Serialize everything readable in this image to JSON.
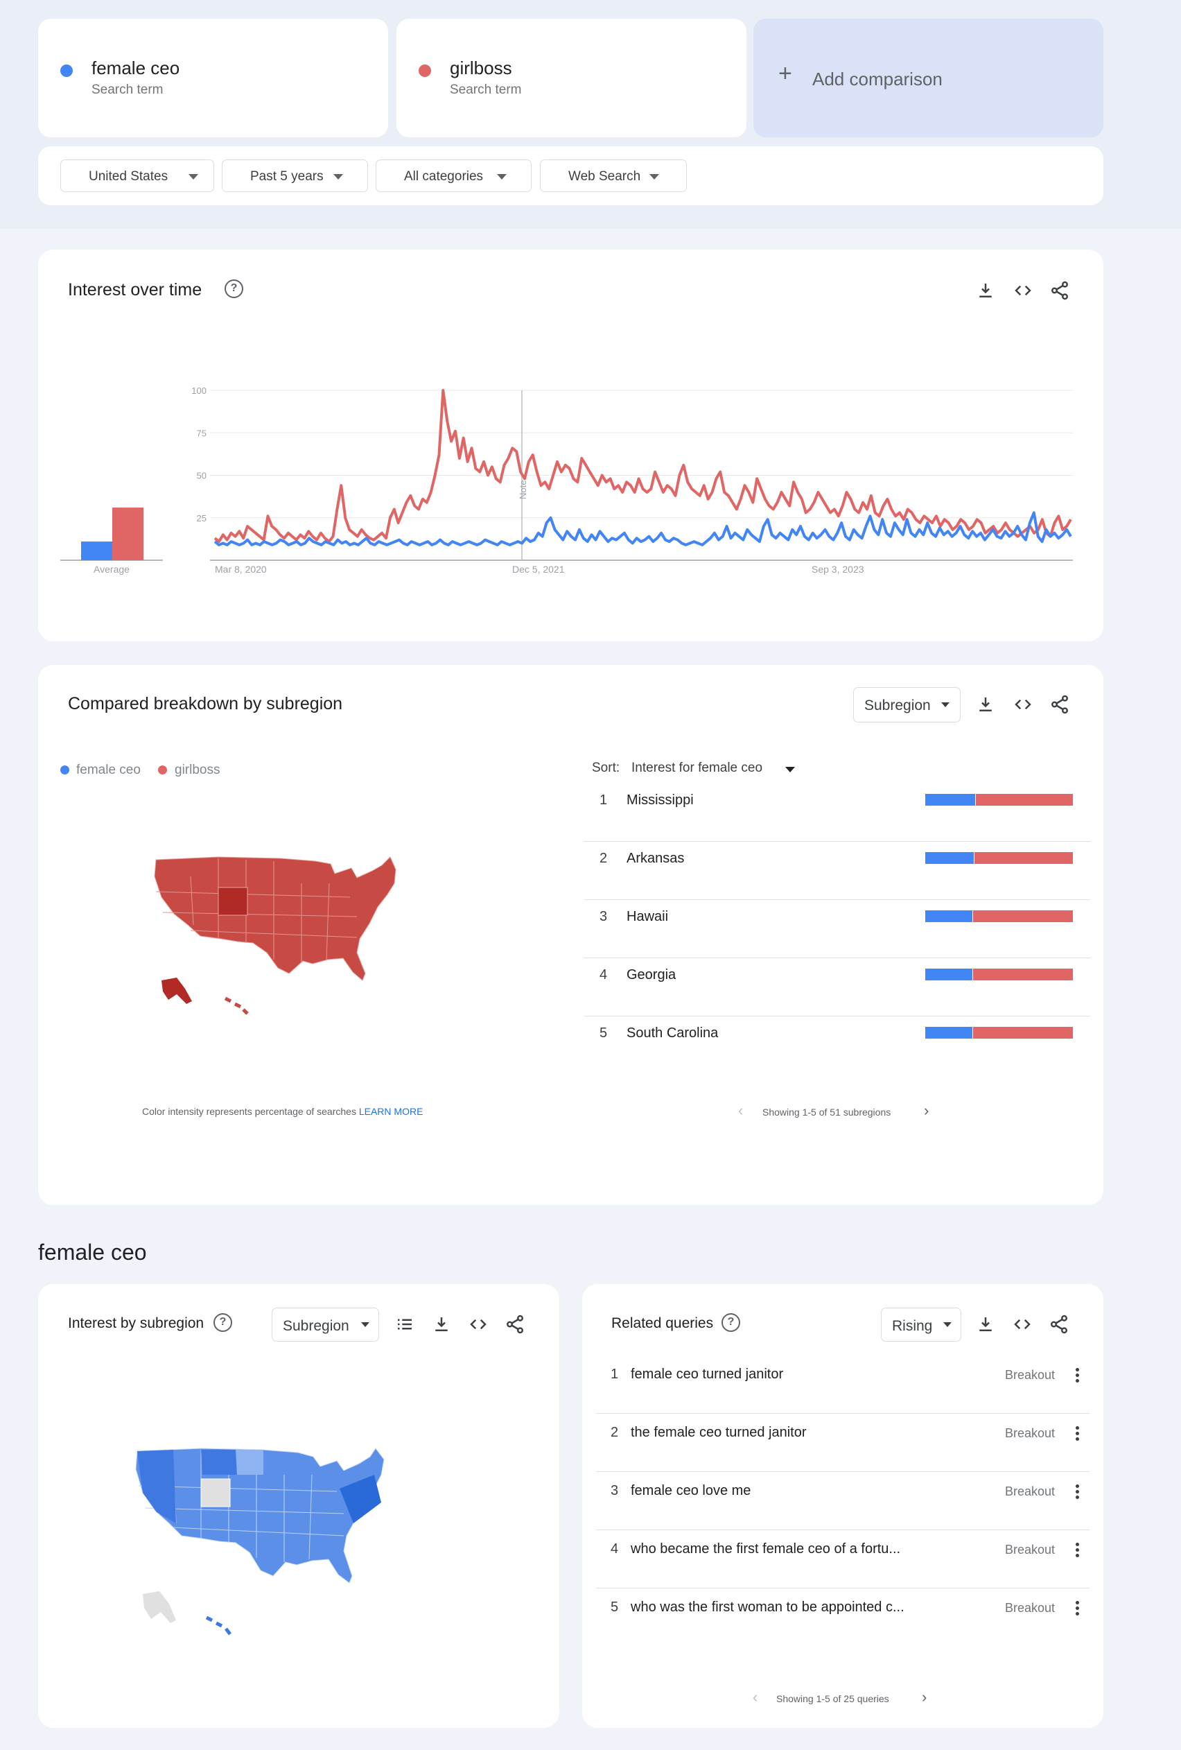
{
  "terms": [
    {
      "name": "female ceo",
      "sub": "Search term",
      "color": "#4285f4"
    },
    {
      "name": "girlboss",
      "sub": "Search term",
      "color": "#e06666"
    }
  ],
  "add_comparison": {
    "icon": "plus-icon",
    "label": "Add comparison"
  },
  "filters": [
    {
      "label": "United States"
    },
    {
      "label": "Past 5 years"
    },
    {
      "label": "All categories"
    },
    {
      "label": "Web Search"
    }
  ],
  "interest_over_time": {
    "title": "Interest over time",
    "help": "?",
    "average_label": "Average",
    "note_label": "Note",
    "icons": [
      "download-icon",
      "embed-icon",
      "share-icon"
    ]
  },
  "chart_data": {
    "type": "line",
    "x_tick_labels": [
      "Mar 8, 2020",
      "Dec 5, 2021",
      "Sep 3, 2023"
    ],
    "y_tick_labels": [
      "100",
      "75",
      "50",
      "25"
    ],
    "ylim": [
      0,
      100
    ],
    "grid": true,
    "average": {
      "female ceo": 11,
      "girlboss": 31
    },
    "series": [
      {
        "name": "female ceo",
        "color": "#4285f4",
        "values": [
          11,
          9,
          10,
          9,
          11,
          10,
          9,
          10,
          12,
          9,
          10,
          9,
          11,
          10,
          9,
          10,
          12,
          11,
          9,
          10,
          11,
          9,
          10,
          13,
          11,
          10,
          9,
          11,
          10,
          9,
          12,
          10,
          11,
          9,
          10,
          9,
          11,
          13,
          10,
          9,
          11,
          10,
          9,
          10,
          11,
          12,
          10,
          9,
          11,
          10,
          9,
          10,
          11,
          9,
          10,
          12,
          10,
          9,
          11,
          10,
          9,
          10,
          11,
          10,
          9,
          10,
          12,
          11,
          10,
          9,
          11,
          10,
          9,
          10,
          11,
          10,
          13,
          11,
          12,
          16,
          14,
          22,
          25,
          18,
          15,
          12,
          17,
          14,
          12,
          18,
          13,
          11,
          15,
          12,
          17,
          14,
          11,
          13,
          12,
          14,
          16,
          12,
          10,
          13,
          11,
          12,
          14,
          11,
          13,
          16,
          12,
          11,
          13,
          12,
          10,
          9,
          10,
          11,
          10,
          9,
          11,
          13,
          16,
          12,
          14,
          20,
          13,
          16,
          14,
          12,
          18,
          15,
          13,
          11,
          20,
          24,
          15,
          13,
          16,
          14,
          12,
          18,
          15,
          20,
          14,
          12,
          16,
          13,
          15,
          18,
          14,
          12,
          16,
          22,
          14,
          12,
          18,
          15,
          13,
          20,
          26,
          18,
          15,
          24,
          16,
          14,
          22,
          18,
          15,
          24,
          16,
          14,
          18,
          15,
          22,
          16,
          14,
          19,
          15,
          17,
          14,
          16,
          20,
          15,
          13,
          17,
          14,
          16,
          12,
          15,
          18,
          14,
          13,
          17,
          14,
          16,
          20,
          15,
          12,
          22,
          28,
          14,
          11,
          18,
          14,
          16,
          13,
          15,
          18,
          14
        ],
        "unit": ""
      },
      {
        "name": "girlboss",
        "color": "#e06666",
        "values": [
          13,
          11,
          15,
          12,
          16,
          14,
          17,
          13,
          20,
          18,
          16,
          14,
          12,
          26,
          20,
          18,
          15,
          13,
          16,
          14,
          12,
          15,
          13,
          17,
          14,
          12,
          16,
          13,
          11,
          14,
          30,
          44,
          25,
          18,
          16,
          14,
          18,
          15,
          13,
          12,
          14,
          16,
          13,
          25,
          30,
          22,
          28,
          34,
          38,
          32,
          30,
          36,
          34,
          40,
          50,
          62,
          100,
          82,
          70,
          76,
          60,
          72,
          58,
          66,
          54,
          52,
          58,
          50,
          55,
          48,
          46,
          56,
          60,
          66,
          64,
          52,
          48,
          58,
          62,
          52,
          44,
          46,
          42,
          50,
          58,
          52,
          56,
          54,
          48,
          46,
          60,
          56,
          52,
          48,
          44,
          50,
          46,
          48,
          42,
          44,
          40,
          46,
          44,
          40,
          48,
          42,
          40,
          42,
          52,
          46,
          40,
          44,
          42,
          38,
          50,
          56,
          46,
          42,
          40,
          38,
          44,
          36,
          40,
          48,
          52,
          40,
          38,
          34,
          30,
          36,
          44,
          40,
          34,
          48,
          42,
          36,
          32,
          30,
          34,
          40,
          36,
          32,
          46,
          40,
          36,
          28,
          30,
          34,
          40,
          36,
          32,
          28,
          30,
          26,
          32,
          40,
          36,
          30,
          28,
          34,
          30,
          38,
          28,
          26,
          32,
          36,
          30,
          26,
          28,
          24,
          30,
          28,
          24,
          22,
          26,
          24,
          22,
          26,
          20,
          24,
          22,
          18,
          20,
          24,
          22,
          18,
          20,
          24,
          22,
          16,
          18,
          20,
          16,
          18,
          22,
          18,
          16,
          14,
          16,
          18,
          20,
          16,
          18,
          24,
          16,
          14,
          22,
          26,
          18,
          20,
          24
        ],
        "unit": ""
      }
    ]
  },
  "breakdown": {
    "title": "Compared breakdown by subregion",
    "dropdown": "Subregion",
    "legend": [
      "female ceo",
      "girlboss"
    ],
    "sort_label": "Sort:",
    "sort_value": "Interest for female ceo",
    "footnote": "Color intensity represents percentage of searches",
    "learn_more": "LEARN MORE",
    "pager": "Showing 1-5 of 51 subregions",
    "rows": [
      {
        "rank": "1",
        "name": "Mississippi",
        "blue_pct": 34
      },
      {
        "rank": "2",
        "name": "Arkansas",
        "blue_pct": 33
      },
      {
        "rank": "3",
        "name": "Hawaii",
        "blue_pct": 32
      },
      {
        "rank": "4",
        "name": "Georgia",
        "blue_pct": 32
      },
      {
        "rank": "5",
        "name": "South Carolina",
        "blue_pct": 32
      }
    ]
  },
  "section_title": "female ceo",
  "interest_by_subregion": {
    "title": "Interest by subregion",
    "help": "?",
    "dropdown": "Subregion"
  },
  "related_queries": {
    "title": "Related queries",
    "help": "?",
    "dropdown": "Rising",
    "pager": "Showing 1-5 of 25 queries",
    "rows": [
      {
        "rank": "1",
        "query": "female ceo turned janitor",
        "value": "Breakout"
      },
      {
        "rank": "2",
        "query": "the female ceo turned janitor",
        "value": "Breakout"
      },
      {
        "rank": "3",
        "query": "female ceo love me",
        "value": "Breakout"
      },
      {
        "rank": "4",
        "query": "who became the first female ceo of a fortu...",
        "value": "Breakout"
      },
      {
        "rank": "5",
        "query": "who was the first woman to be appointed c...",
        "value": "Breakout"
      }
    ]
  }
}
